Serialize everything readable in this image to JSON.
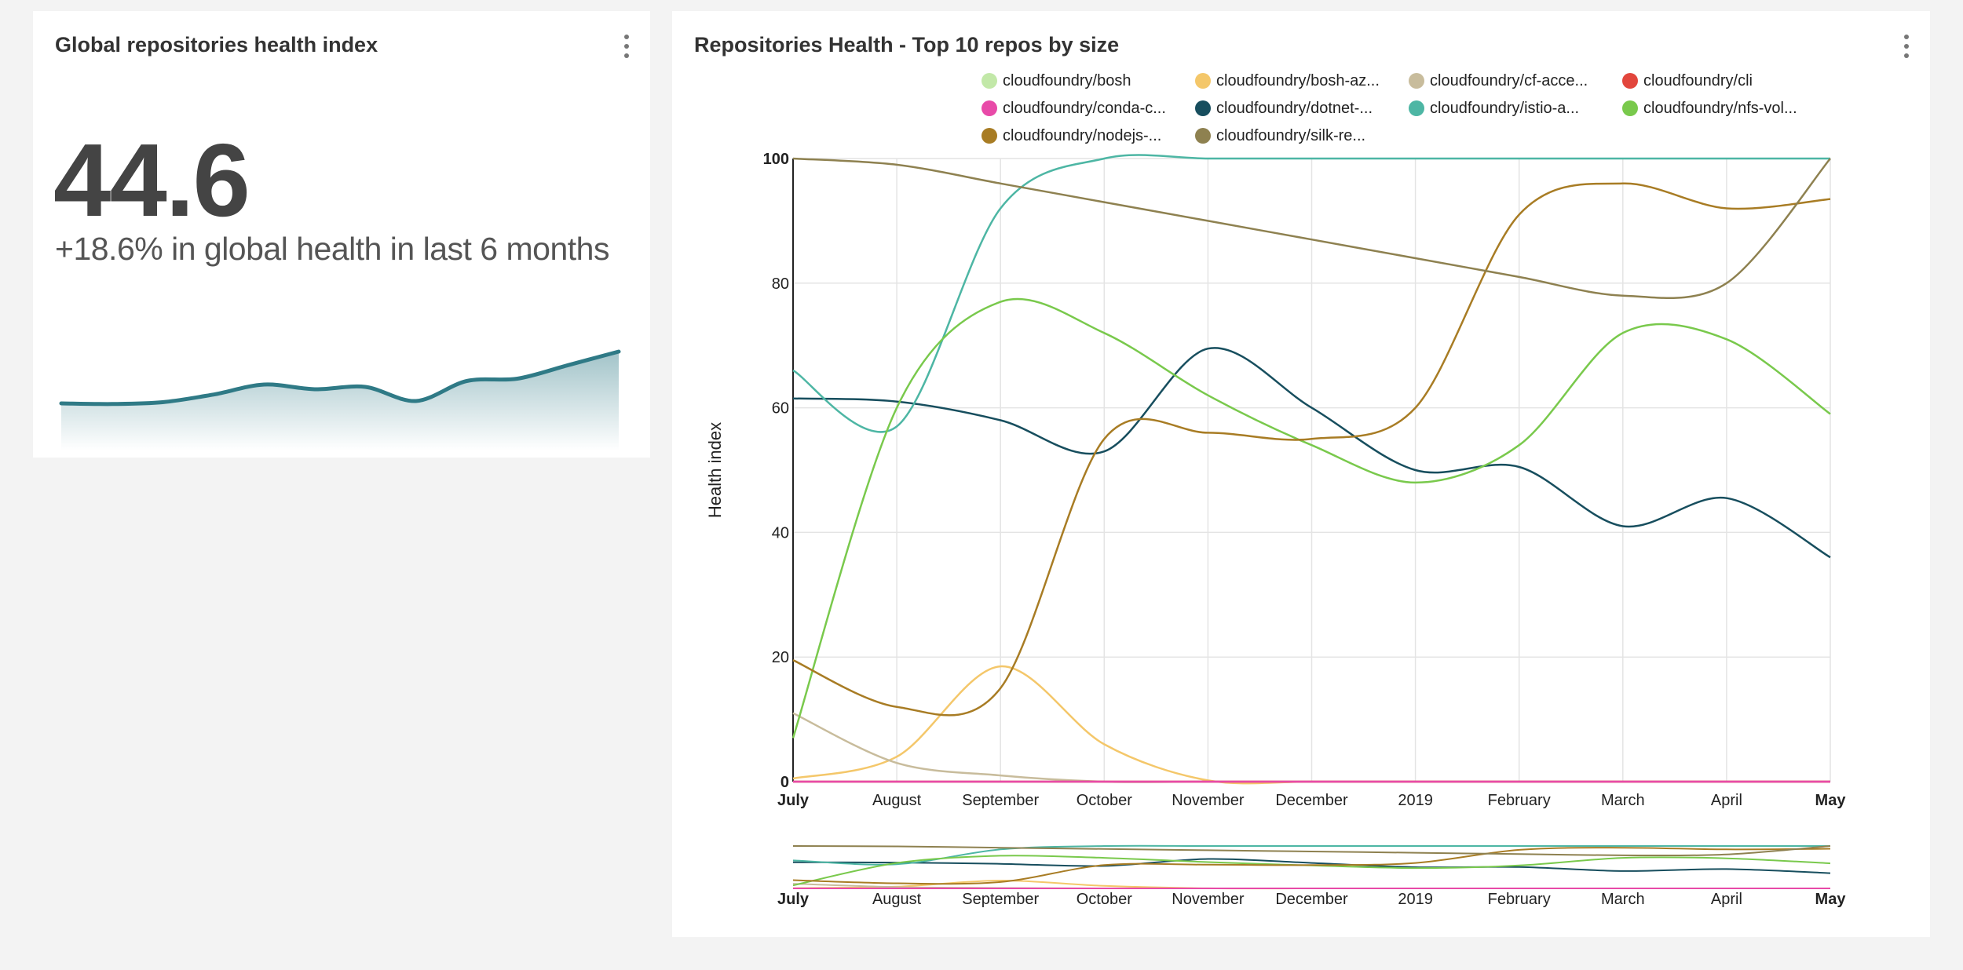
{
  "left_card": {
    "title": "Global repositories health index",
    "value": "44.6",
    "delta_text": "+18.6% in global health in last 6 months",
    "sparkline_color": "#2f7a86",
    "sparkline_values": [
      28,
      27.9,
      28.2,
      29.5,
      31.2,
      30.4,
      30.8,
      28.4,
      31.8,
      32.2,
      34.5,
      36.8
    ]
  },
  "right_card": {
    "title": "Repositories Health - Top 10 repos by size"
  },
  "chart_data": {
    "type": "line",
    "title": "Repositories Health - Top 10 repos by size",
    "xlabel": "",
    "ylabel": "Health index",
    "ylim": [
      0,
      100
    ],
    "yticks": [
      0,
      20,
      40,
      60,
      80,
      100
    ],
    "x_ticks": [
      "July",
      "August",
      "September",
      "October",
      "November",
      "December",
      "2019",
      "February",
      "March",
      "April",
      "May"
    ],
    "x_tick_bold": [
      "July",
      "May"
    ],
    "grid": true,
    "legend_position": "top",
    "series": [
      {
        "name": "cloudfoundry/bosh",
        "color": "#c2e8a8",
        "values": [
          0,
          0,
          0,
          0,
          0,
          0,
          0,
          0,
          0,
          0,
          0
        ]
      },
      {
        "name": "cloudfoundry/bosh-az...",
        "color": "#f4c76a",
        "values": [
          0.5,
          4,
          18.5,
          6,
          0.2,
          0,
          0,
          0,
          0,
          0,
          0
        ]
      },
      {
        "name": "cloudfoundry/cf-acce...",
        "color": "#c8bc9c",
        "values": [
          11,
          3,
          1,
          0,
          0,
          0,
          0,
          0,
          0,
          0,
          0
        ]
      },
      {
        "name": "cloudfoundry/cli",
        "color": "#e2463c",
        "values": [
          0,
          0,
          0,
          0,
          0,
          0,
          0,
          0,
          0,
          0,
          0
        ]
      },
      {
        "name": "cloudfoundry/conda-c...",
        "color": "#e84aa8",
        "values": [
          0,
          0,
          0,
          0,
          0,
          0,
          0,
          0,
          0,
          0,
          0
        ]
      },
      {
        "name": "cloudfoundry/dotnet-...",
        "color": "#174e5e",
        "values": [
          61.5,
          61,
          58,
          53,
          69.5,
          60,
          50,
          50.5,
          41,
          45.5,
          36
        ]
      },
      {
        "name": "cloudfoundry/istio-a...",
        "color": "#4db6a4",
        "values": [
          66,
          57,
          92,
          100,
          100,
          100,
          100,
          100,
          100,
          100,
          100
        ]
      },
      {
        "name": "cloudfoundry/nfs-vol...",
        "color": "#79c94c",
        "values": [
          7,
          60,
          77,
          72,
          62,
          54,
          48,
          54,
          72,
          71,
          59
        ]
      },
      {
        "name": "cloudfoundry/nodejs-...",
        "color": "#a87c24",
        "values": [
          19.5,
          12,
          15,
          55,
          56,
          55,
          60,
          91,
          96,
          92,
          93.5
        ]
      },
      {
        "name": "cloudfoundry/silk-re...",
        "color": "#8e8150",
        "values": [
          100,
          99,
          96,
          93,
          90,
          87,
          84,
          81,
          78,
          80,
          100
        ]
      }
    ]
  }
}
